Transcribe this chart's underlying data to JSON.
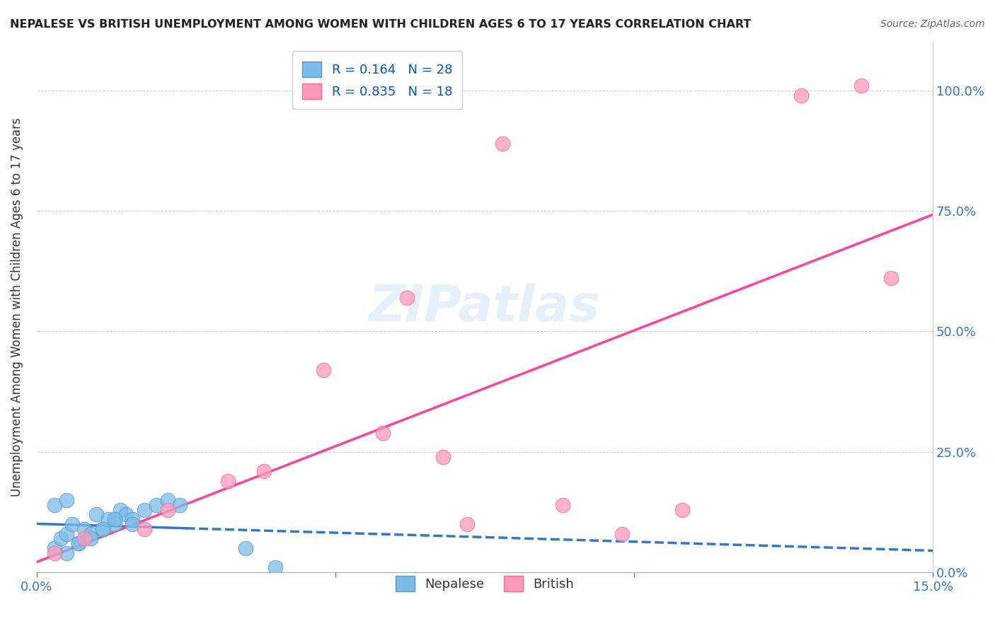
{
  "title": "NEPALESE VS BRITISH UNEMPLOYMENT AMONG WOMEN WITH CHILDREN AGES 6 TO 17 YEARS CORRELATION CHART",
  "source": "Source: ZipAtlas.com",
  "ylabel": "Unemployment Among Women with Children Ages 6 to 17 years",
  "xlim": [
    0.0,
    0.15
  ],
  "ylim": [
    0.0,
    1.1
  ],
  "right_yticks": [
    0.0,
    0.25,
    0.5,
    0.75,
    1.0
  ],
  "right_yticklabels": [
    "0.0%",
    "25.0%",
    "50.0%",
    "75.0%",
    "100.0%"
  ],
  "nepalese_color": "#7bbde8",
  "nepalese_edge": "#5599cc",
  "british_color": "#ff99bb",
  "british_edge": "#ff6699",
  "line_blue": "#3377cc",
  "line_pink": "#ff4499",
  "nepalese_R": 0.164,
  "nepalese_N": 28,
  "british_R": 0.835,
  "british_N": 18,
  "nepalese_x": [
    0.003,
    0.004,
    0.005,
    0.006,
    0.007,
    0.008,
    0.009,
    0.01,
    0.011,
    0.012,
    0.013,
    0.014,
    0.015,
    0.016,
    0.018,
    0.02,
    0.022,
    0.024,
    0.005,
    0.007,
    0.009,
    0.011,
    0.013,
    0.016,
    0.003,
    0.005,
    0.035,
    0.04
  ],
  "nepalese_y": [
    0.05,
    0.07,
    0.08,
    0.1,
    0.06,
    0.09,
    0.08,
    0.12,
    0.09,
    0.11,
    0.1,
    0.13,
    0.12,
    0.11,
    0.13,
    0.14,
    0.15,
    0.14,
    0.04,
    0.06,
    0.07,
    0.09,
    0.11,
    0.1,
    0.14,
    0.15,
    0.05,
    0.01
  ],
  "british_x": [
    0.003,
    0.008,
    0.018,
    0.022,
    0.032,
    0.038,
    0.048,
    0.058,
    0.062,
    0.068,
    0.072,
    0.078,
    0.088,
    0.098,
    0.108,
    0.128,
    0.138,
    0.143
  ],
  "british_y": [
    0.04,
    0.07,
    0.09,
    0.13,
    0.19,
    0.21,
    0.42,
    0.29,
    0.57,
    0.24,
    0.1,
    0.89,
    0.14,
    0.08,
    0.13,
    0.99,
    1.01,
    0.61
  ],
  "watermark": "ZIPatlas",
  "background_color": "#ffffff",
  "grid_color": "#cccccc",
  "tick_color": "#3377cc",
  "text_color": "#222222",
  "source_color": "#666666"
}
